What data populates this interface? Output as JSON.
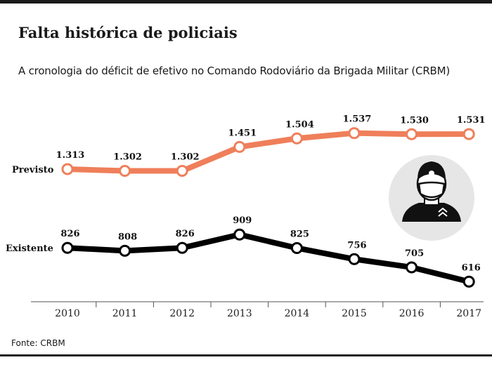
{
  "header": {
    "title": "Falta histórica de policiais",
    "subtitle": "A cronologia do déficit de efetivo no Comando Rodoviário da Brigada Militar (CRBM)"
  },
  "footer": {
    "source": "Fonte: CRBM"
  },
  "icon": {
    "name": "police-officer-icon"
  },
  "chart_data": {
    "type": "line",
    "title": "Falta histórica de policiais",
    "subtitle": "A cronologia do déficit de efetivo no Comando Rodoviário da Brigada Militar (CRBM)",
    "x": [
      "2010",
      "2011",
      "2012",
      "2013",
      "2014",
      "2015",
      "2016",
      "2017"
    ],
    "series": [
      {
        "name": "Previsto",
        "values": [
          1313,
          1302,
          1302,
          1451,
          1504,
          1537,
          1530,
          1531
        ],
        "labels": [
          "1.313",
          "1.302",
          "1.302",
          "1.451",
          "1.504",
          "1.537",
          "1.530",
          "1.531"
        ],
        "color": "#ef7f5a"
      },
      {
        "name": "Existente",
        "values": [
          826,
          808,
          826,
          909,
          825,
          756,
          705,
          616
        ],
        "labels": [
          "826",
          "808",
          "826",
          "909",
          "825",
          "756",
          "705",
          "616"
        ],
        "color": "#000000"
      }
    ],
    "grid": false,
    "legend": "left-inline-labels"
  }
}
